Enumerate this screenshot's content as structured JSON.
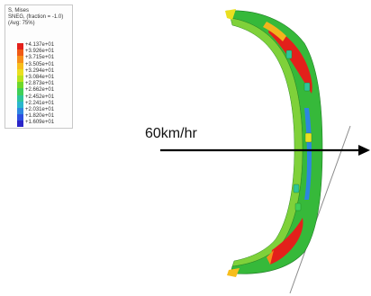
{
  "legend": {
    "variable": "S, Mises",
    "section": "SNEG, (fraction = -1.0)",
    "averaging": "(Avg: 75%)",
    "levels": [
      {
        "label": "+4.137e+01",
        "color": "#e3201b"
      },
      {
        "label": "+3.926e+01",
        "color": "#f05a14"
      },
      {
        "label": "+3.715e+01",
        "color": "#f68e1a"
      },
      {
        "label": "+3.505e+01",
        "color": "#f7bd1c"
      },
      {
        "label": "+3.294e+01",
        "color": "#eadf20"
      },
      {
        "label": "+3.084e+01",
        "color": "#b8e21d"
      },
      {
        "label": "+2.873e+01",
        "color": "#6fd82a"
      },
      {
        "label": "+2.662e+01",
        "color": "#3fcf57"
      },
      {
        "label": "+2.452e+01",
        "color": "#2ec59a"
      },
      {
        "label": "+2.241e+01",
        "color": "#2ab6cc"
      },
      {
        "label": "+2.031e+01",
        "color": "#2d86e0"
      },
      {
        "label": "+1.820e+01",
        "color": "#2d4fe0"
      },
      {
        "label": "+1.609e+01",
        "color": "#2a25c8"
      }
    ]
  },
  "impact": {
    "speed_label": "60km/hr"
  },
  "colors": {
    "arrow": "#000000",
    "ground_line": "#8a8a8a",
    "model_base": "#2fb63a",
    "model_high": "#e3201b",
    "model_low": "#2d4fe0"
  }
}
